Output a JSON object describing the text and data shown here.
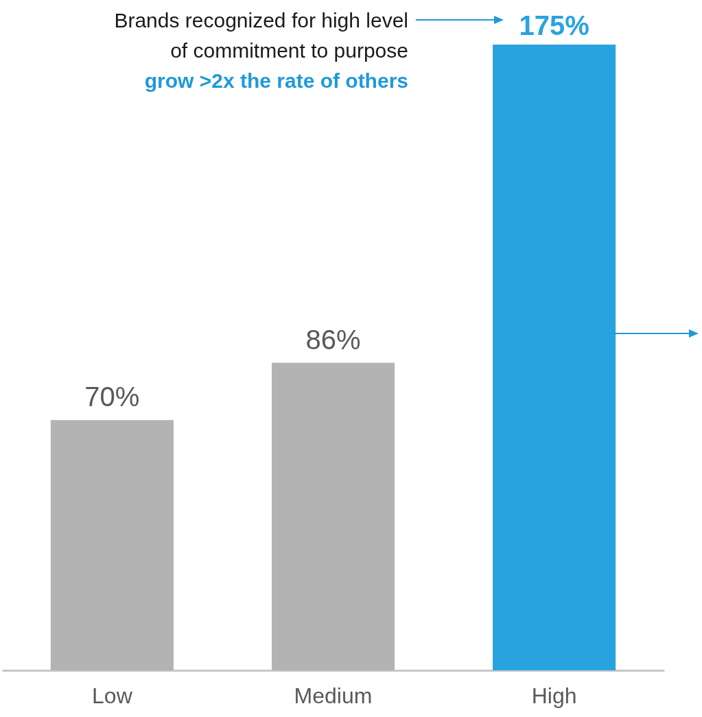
{
  "chart_data": {
    "type": "bar",
    "categories": [
      "Low",
      "Medium",
      "High"
    ],
    "values": [
      70,
      86,
      175
    ],
    "colors": [
      "#b3b3b3",
      "#b3b3b3",
      "#29a3df"
    ],
    "value_labels": [
      "70%",
      "86%",
      "175%"
    ],
    "ylim": [
      0,
      175
    ],
    "tick_labels": "x",
    "grid": false,
    "annotations": [
      "Brands recognized for high level\nof commitment to purpose",
      "grow >2x the rate of others"
    ]
  }
}
